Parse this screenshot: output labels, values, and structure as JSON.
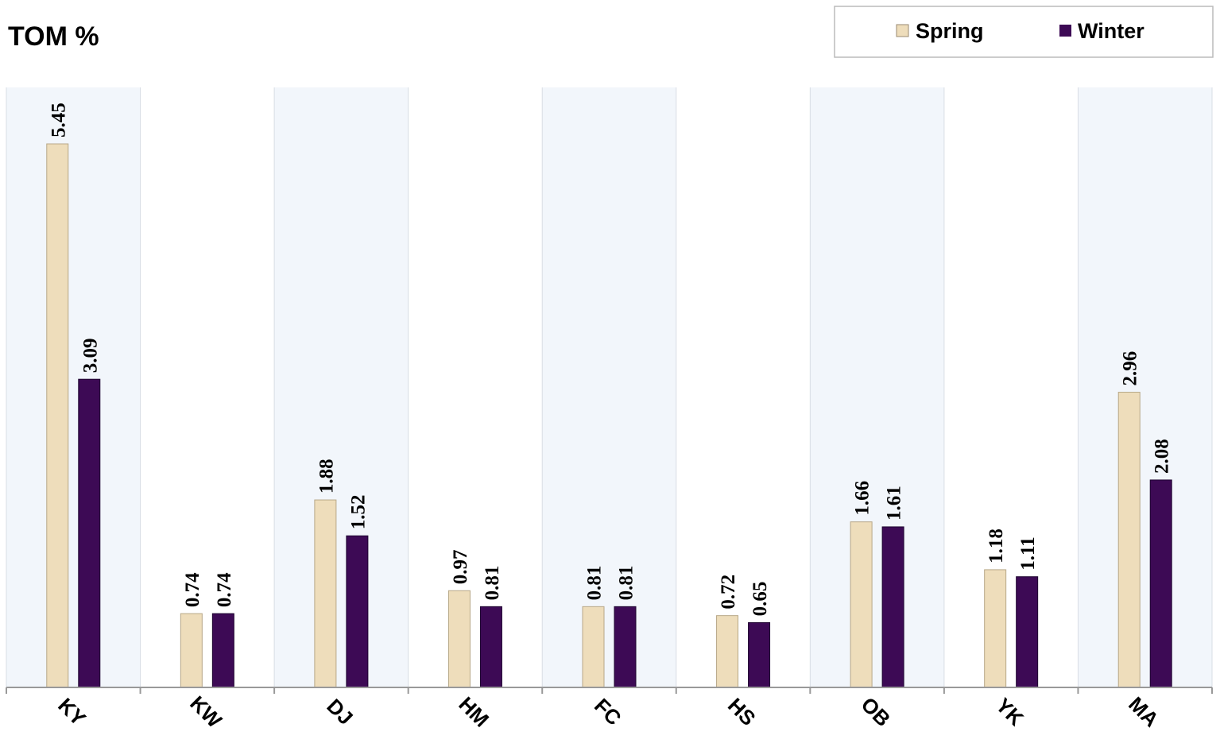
{
  "chart_data": {
    "type": "bar",
    "title": "TOM %",
    "xlabel": "",
    "ylabel": "",
    "categories": [
      "KY",
      "KW",
      "DJ",
      "HM",
      "FC",
      "HS",
      "OB",
      "YK",
      "MA"
    ],
    "series": [
      {
        "name": "Spring",
        "values": [
          5.45,
          0.74,
          1.88,
          0.97,
          0.81,
          0.72,
          1.66,
          1.18,
          2.96
        ],
        "color": "#EEDDBB"
      },
      {
        "name": "Winter",
        "values": [
          3.09,
          0.74,
          1.52,
          0.81,
          0.81,
          0.65,
          1.61,
          1.11,
          2.08
        ],
        "color": "#3D0A55"
      }
    ],
    "ylim": [
      0,
      6
    ],
    "grid": false,
    "legend_position": "top-right",
    "band_color": "#F2F6FB",
    "axis_color": "#999999"
  }
}
